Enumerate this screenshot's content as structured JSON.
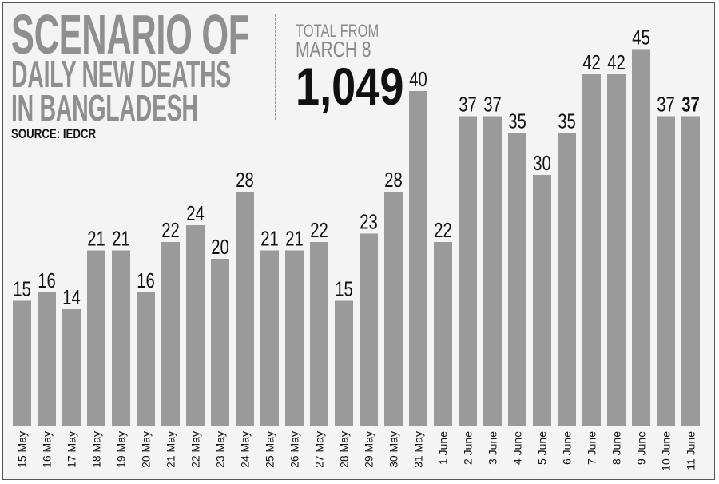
{
  "header": {
    "title_line_1": "SCENARIO OF",
    "title_line_2": "DAILY NEW DEATHS",
    "title_line_3": "IN BANGLADESH",
    "source": "SOURCE: IEDCR",
    "total_label_1": "TOTAL FROM",
    "total_label_2": "MARCH 8",
    "total_value": "1,049"
  },
  "colors": {
    "bar": "#9a9a9a",
    "title": "#8f8f8f",
    "text": "#111111",
    "background": "#f4f4f4"
  },
  "chart_data": {
    "type": "bar",
    "categories": [
      "15 May",
      "16 May",
      "17 May",
      "18 May",
      "19 May",
      "20 May",
      "21 May",
      "22 May",
      "23 May",
      "24 May",
      "25 May",
      "26 May",
      "27 May",
      "28 May",
      "29 May",
      "30 May",
      "31 May",
      "1 June",
      "2 June",
      "3 June",
      "4 June",
      "5 June",
      "6 June",
      "7 June",
      "8 June",
      "9 June",
      "10 June",
      "11 June"
    ],
    "values": [
      15,
      16,
      14,
      21,
      21,
      16,
      22,
      24,
      20,
      28,
      21,
      21,
      22,
      15,
      23,
      28,
      40,
      22,
      37,
      37,
      35,
      30,
      35,
      42,
      42,
      45,
      37,
      37
    ],
    "data_labels": [
      "15",
      "16",
      "14",
      "21",
      "21",
      "16",
      "22",
      "24",
      "20",
      "28",
      "21",
      "21",
      "22",
      "15",
      "23",
      "28",
      "40",
      "22",
      "37",
      "37",
      "35",
      "30",
      "35",
      "42",
      "42",
      "45",
      "37",
      "37"
    ],
    "highlight_last_label": true,
    "grid": false,
    "legend": "none"
  }
}
